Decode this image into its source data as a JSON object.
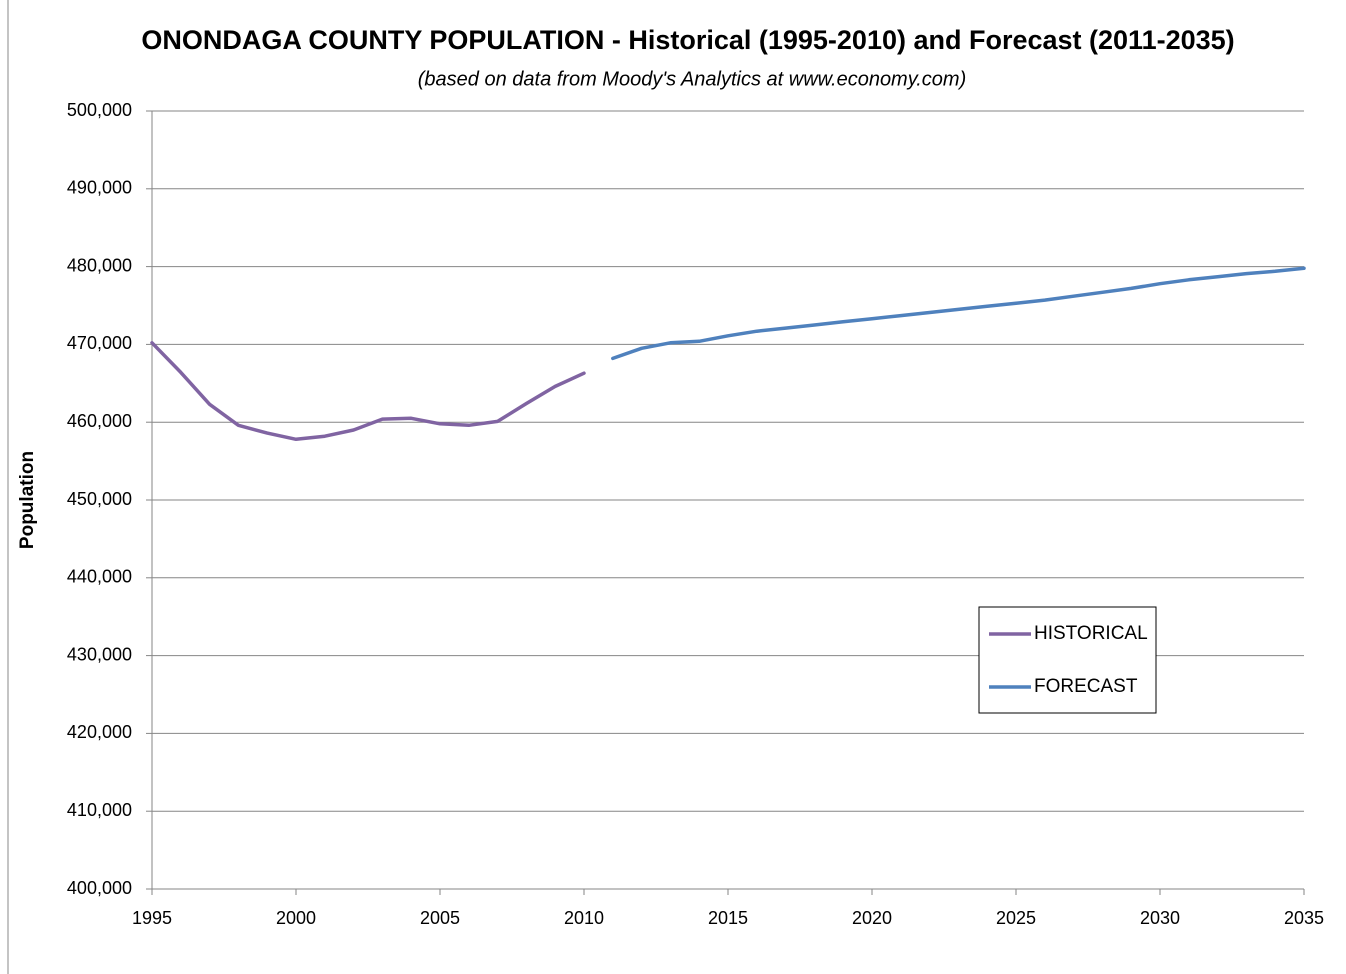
{
  "chart_data": {
    "type": "line",
    "title": "ONONDAGA COUNTY POPULATION - Historical (1995-2010) and Forecast (2011-2035)",
    "subtitle": "(based on data from Moody's Analytics at www.economy.com)",
    "y_label": "Population",
    "xlim": [
      1995,
      2035
    ],
    "xticks": [
      1995,
      2000,
      2005,
      2010,
      2015,
      2020,
      2025,
      2030,
      2035
    ],
    "ylim": [
      400000,
      500000
    ],
    "yticks": [
      {
        "value": 400000,
        "label": "400,000"
      },
      {
        "value": 410000,
        "label": "410,000"
      },
      {
        "value": 420000,
        "label": "420,000"
      },
      {
        "value": 430000,
        "label": "430,000"
      },
      {
        "value": 440000,
        "label": "440,000"
      },
      {
        "value": 450000,
        "label": "450,000"
      },
      {
        "value": 460000,
        "label": "460,000"
      },
      {
        "value": 470000,
        "label": "470,000"
      },
      {
        "value": 480000,
        "label": "480,000"
      },
      {
        "value": 490000,
        "label": "490,000"
      },
      {
        "value": 500000,
        "label": "500,000"
      }
    ],
    "grid": true,
    "legend": "right",
    "series": [
      {
        "name": "HISTORICAL",
        "color": "#8064a2",
        "x": [
          1995,
          1996,
          1997,
          1998,
          1999,
          2000,
          2001,
          2002,
          2003,
          2004,
          2005,
          2006,
          2007,
          2008,
          2009,
          2010
        ],
        "values": [
          470200,
          466400,
          462300,
          459600,
          458600,
          457800,
          458200,
          459000,
          460400,
          460500,
          459800,
          459600,
          460100,
          462400,
          464600,
          466300
        ]
      },
      {
        "name": "FORECAST",
        "color": "#4f81bd",
        "x": [
          2011,
          2012,
          2013,
          2014,
          2015,
          2016,
          2017,
          2018,
          2019,
          2020,
          2021,
          2022,
          2023,
          2024,
          2025,
          2026,
          2027,
          2028,
          2029,
          2030,
          2031,
          2032,
          2033,
          2034,
          2035
        ],
        "values": [
          468200,
          469500,
          470200,
          470400,
          471100,
          471700,
          472100,
          472500,
          472900,
          473300,
          473700,
          474100,
          474500,
          474900,
          475300,
          475700,
          476200,
          476700,
          477200,
          477800,
          478300,
          478700,
          479100,
          479400,
          479800
        ]
      }
    ]
  }
}
